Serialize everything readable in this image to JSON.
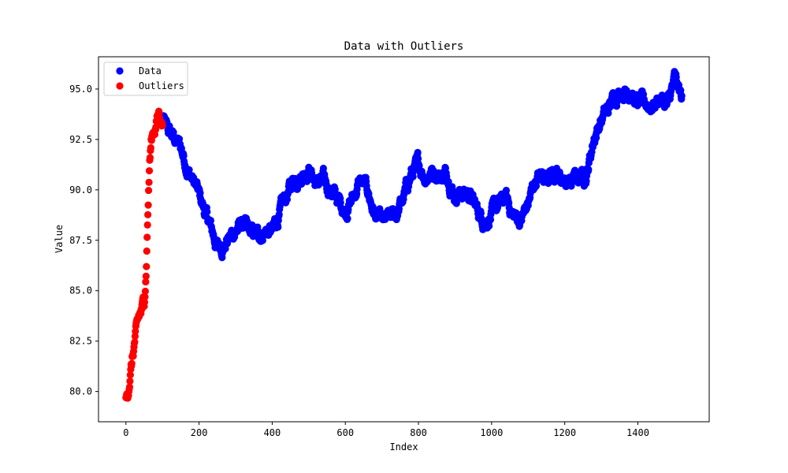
{
  "chart_data": {
    "type": "scatter",
    "title": "Data with Outliers",
    "xlabel": "Index",
    "ylabel": "Value",
    "xlim": [
      -75,
      1595
    ],
    "ylim": [
      78.5,
      96.6
    ],
    "xticks": [
      0,
      200,
      400,
      600,
      800,
      1000,
      1200,
      1400
    ],
    "xtick_labels": [
      "0",
      "200",
      "400",
      "600",
      "800",
      "1000",
      "1200",
      "1400"
    ],
    "yticks": [
      80.0,
      82.5,
      85.0,
      87.5,
      90.0,
      92.5,
      95.0
    ],
    "ytick_labels": [
      "80.0",
      "82.5",
      "85.0",
      "87.5",
      "90.0",
      "92.5",
      "95.0"
    ],
    "grid": false,
    "legend_position": "top-left",
    "series": [
      {
        "name": "Data",
        "color": "#0000ff",
        "x_range": [
          100,
          1520
        ],
        "anchors": [
          [
            100,
            93.6
          ],
          [
            110,
            93.0
          ],
          [
            130,
            92.6
          ],
          [
            150,
            92.1
          ],
          [
            170,
            91.0
          ],
          [
            190,
            90.2
          ],
          [
            210,
            89.2
          ],
          [
            230,
            88.2
          ],
          [
            250,
            87.2
          ],
          [
            270,
            87.3
          ],
          [
            300,
            88.0
          ],
          [
            320,
            88.3
          ],
          [
            340,
            87.8
          ],
          [
            360,
            87.7
          ],
          [
            380,
            88.0
          ],
          [
            400,
            87.9
          ],
          [
            420,
            88.8
          ],
          [
            440,
            89.7
          ],
          [
            460,
            90.6
          ],
          [
            480,
            90.8
          ],
          [
            500,
            91.1
          ],
          [
            520,
            90.3
          ],
          [
            540,
            90.4
          ],
          [
            560,
            90.0
          ],
          [
            580,
            89.5
          ],
          [
            600,
            89.0
          ],
          [
            620,
            89.6
          ],
          [
            640,
            90.4
          ],
          [
            660,
            90.0
          ],
          [
            680,
            88.8
          ],
          [
            700,
            88.3
          ],
          [
            720,
            88.5
          ],
          [
            740,
            88.8
          ],
          [
            760,
            89.6
          ],
          [
            780,
            90.8
          ],
          [
            800,
            91.2
          ],
          [
            820,
            90.7
          ],
          [
            840,
            91.0
          ],
          [
            860,
            90.7
          ],
          [
            880,
            90.8
          ],
          [
            900,
            89.8
          ],
          [
            920,
            89.9
          ],
          [
            940,
            89.8
          ],
          [
            960,
            89.0
          ],
          [
            980,
            88.5
          ],
          [
            1000,
            88.8
          ],
          [
            1020,
            89.2
          ],
          [
            1040,
            89.6
          ],
          [
            1060,
            88.7
          ],
          [
            1080,
            88.5
          ],
          [
            1100,
            89.3
          ],
          [
            1120,
            90.5
          ],
          [
            1140,
            90.7
          ],
          [
            1160,
            91.0
          ],
          [
            1180,
            90.6
          ],
          [
            1200,
            90.3
          ],
          [
            1220,
            90.4
          ],
          [
            1240,
            90.7
          ],
          [
            1260,
            90.8
          ],
          [
            1280,
            92.6
          ],
          [
            1300,
            93.5
          ],
          [
            1320,
            94.0
          ],
          [
            1340,
            94.8
          ],
          [
            1360,
            95.0
          ],
          [
            1380,
            94.9
          ],
          [
            1400,
            94.2
          ],
          [
            1420,
            94.3
          ],
          [
            1440,
            94.2
          ],
          [
            1460,
            94.6
          ],
          [
            1480,
            94.1
          ],
          [
            1500,
            95.4
          ],
          [
            1520,
            94.5
          ]
        ]
      },
      {
        "name": "Outliers",
        "color": "#ff0000",
        "x_range": [
          0,
          100
        ],
        "anchors": [
          [
            0,
            79.6
          ],
          [
            5,
            79.9
          ],
          [
            10,
            80.7
          ],
          [
            15,
            81.3
          ],
          [
            20,
            81.9
          ],
          [
            25,
            82.6
          ],
          [
            30,
            83.0
          ],
          [
            35,
            83.5
          ],
          [
            40,
            83.8
          ],
          [
            45,
            84.1
          ],
          [
            50,
            84.4
          ],
          [
            55,
            86.0
          ],
          [
            60,
            89.0
          ],
          [
            65,
            91.5
          ],
          [
            70,
            92.5
          ],
          [
            75,
            92.9
          ],
          [
            80,
            93.2
          ],
          [
            85,
            93.5
          ],
          [
            90,
            93.8
          ],
          [
            95,
            93.6
          ],
          [
            100,
            93.3
          ]
        ]
      }
    ]
  }
}
